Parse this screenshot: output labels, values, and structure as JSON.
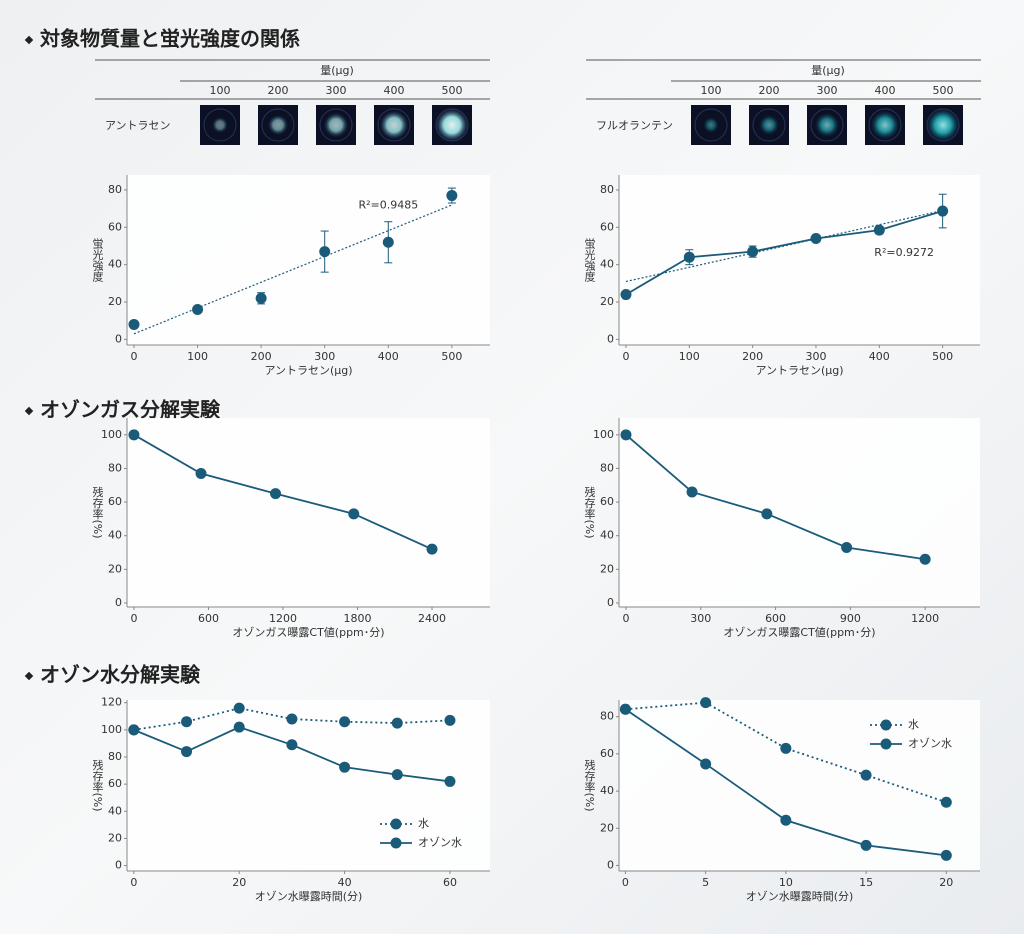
{
  "sections": [
    {
      "title": "対象物質量と蛍光強度の関係"
    },
    {
      "title": "オゾンガス分解実験"
    },
    {
      "title": "オゾン水分解実験"
    }
  ],
  "tables": [
    {
      "header": "量(μg)",
      "columns": [
        100,
        200,
        300,
        400,
        500
      ],
      "row_label": "アントラセン"
    },
    {
      "header": "量(μg)",
      "columns": [
        100,
        200,
        300,
        400,
        500
      ],
      "row_label": "フルオランテン"
    }
  ],
  "chart_data": [
    {
      "type": "scatter",
      "x_label": "アントラセン(μg)",
      "y_label": "蛍光強度",
      "x": [
        0,
        100,
        200,
        300,
        400,
        500
      ],
      "series": [
        {
          "color": "#1b5b7a",
          "linestyle": "none",
          "values": [
            8,
            16,
            22,
            47,
            52,
            77
          ],
          "errors": [
            null,
            null,
            3,
            11,
            11,
            4
          ]
        }
      ],
      "trend": {
        "x": [
          0,
          500
        ],
        "values": [
          3,
          72
        ]
      },
      "annotation": "R²=0.9485",
      "xlim": [
        -11,
        560
      ],
      "ylim": [
        -3,
        88
      ],
      "xticks": [
        0,
        100,
        200,
        300,
        400,
        500
      ],
      "yticks": [
        0,
        20,
        40,
        60,
        80
      ]
    },
    {
      "type": "line",
      "x_label": "アントラセン(μg)",
      "y_label": "蛍光強度",
      "x": [
        0,
        100,
        200,
        300,
        400,
        500
      ],
      "series": [
        {
          "color": "#1b5b7a",
          "linestyle": "solid",
          "values": [
            24,
            44,
            47,
            54,
            58.5,
            68.7
          ],
          "errors": [
            null,
            4,
            3,
            1,
            2,
            9
          ]
        }
      ],
      "trend": {
        "x": [
          0,
          500
        ],
        "values": [
          31,
          69
        ]
      },
      "annotation": "R²=0.9272",
      "xlim": [
        -11,
        559
      ],
      "ylim": [
        -3,
        88
      ],
      "xticks": [
        0,
        100,
        200,
        300,
        400,
        500
      ],
      "yticks": [
        0,
        20,
        40,
        60,
        80
      ]
    },
    {
      "type": "line",
      "x_label": "オゾンガス曝露CT値(ppm･分)",
      "y_label": "残存率(%)",
      "x": [
        0,
        540,
        1140,
        1770,
        2400
      ],
      "series": [
        {
          "color": "#1b5b7a",
          "linestyle": "solid",
          "values": [
            100,
            77,
            65,
            53,
            32
          ]
        }
      ],
      "xlim": [
        -56,
        2867
      ],
      "ylim": [
        -2.4,
        110
      ],
      "xticks": [
        0,
        600,
        1200,
        1800,
        2400
      ],
      "yticks": [
        0,
        20,
        40,
        60,
        80,
        100
      ]
    },
    {
      "type": "line",
      "x_label": "オゾンガス曝露CT値(ppm･分)",
      "y_label": "残存率(%)",
      "x": [
        0,
        265,
        565,
        885,
        1200
      ],
      "series": [
        {
          "color": "#1b5b7a",
          "linestyle": "solid",
          "values": [
            100,
            66,
            53,
            33,
            26
          ]
        }
      ],
      "xlim": [
        -28,
        1420
      ],
      "ylim": [
        -2.4,
        110
      ],
      "xticks": [
        0,
        300,
        600,
        900,
        1200
      ],
      "yticks": [
        0,
        20,
        40,
        60,
        80,
        100
      ]
    },
    {
      "type": "line",
      "x_label": "オゾン水曝露時間(分)",
      "y_label": "残存率(%)",
      "x": [
        0,
        10,
        20,
        30,
        40,
        50,
        60
      ],
      "series": [
        {
          "name": "水",
          "color": "#1b5b7a",
          "linestyle": "dotted",
          "values": [
            100,
            106,
            116,
            108,
            106,
            105,
            107
          ]
        },
        {
          "name": "オゾン水",
          "color": "#1b5b7a",
          "linestyle": "solid",
          "values": [
            100,
            84,
            102,
            89,
            72.5,
            67,
            62
          ]
        }
      ],
      "legend": "lower right",
      "xlim": [
        -1.3,
        67.6
      ],
      "ylim": [
        -4,
        122
      ],
      "xticks": [
        0,
        20,
        40,
        60
      ],
      "yticks": [
        0,
        20,
        40,
        60,
        80,
        100,
        120
      ]
    },
    {
      "type": "line",
      "x_label": "オゾン水曝露時間(分)",
      "y_label": "残存率(%)",
      "x": [
        0,
        5,
        10,
        15,
        20
      ],
      "series": [
        {
          "name": "水",
          "color": "#1b5b7a",
          "linestyle": "dotted",
          "values": [
            84,
            87.6,
            63,
            48.6,
            34
          ]
        },
        {
          "name": "オゾン水",
          "color": "#1b5b7a",
          "linestyle": "solid",
          "values": [
            84,
            54.6,
            24.3,
            10.8,
            5.4
          ]
        }
      ],
      "legend": "upper right",
      "xlim": [
        -0.4,
        22.1
      ],
      "ylim": [
        -3,
        89
      ],
      "xticks": [
        0,
        5,
        10,
        15,
        20
      ],
      "yticks": [
        0,
        20,
        40,
        60,
        80
      ]
    }
  ]
}
